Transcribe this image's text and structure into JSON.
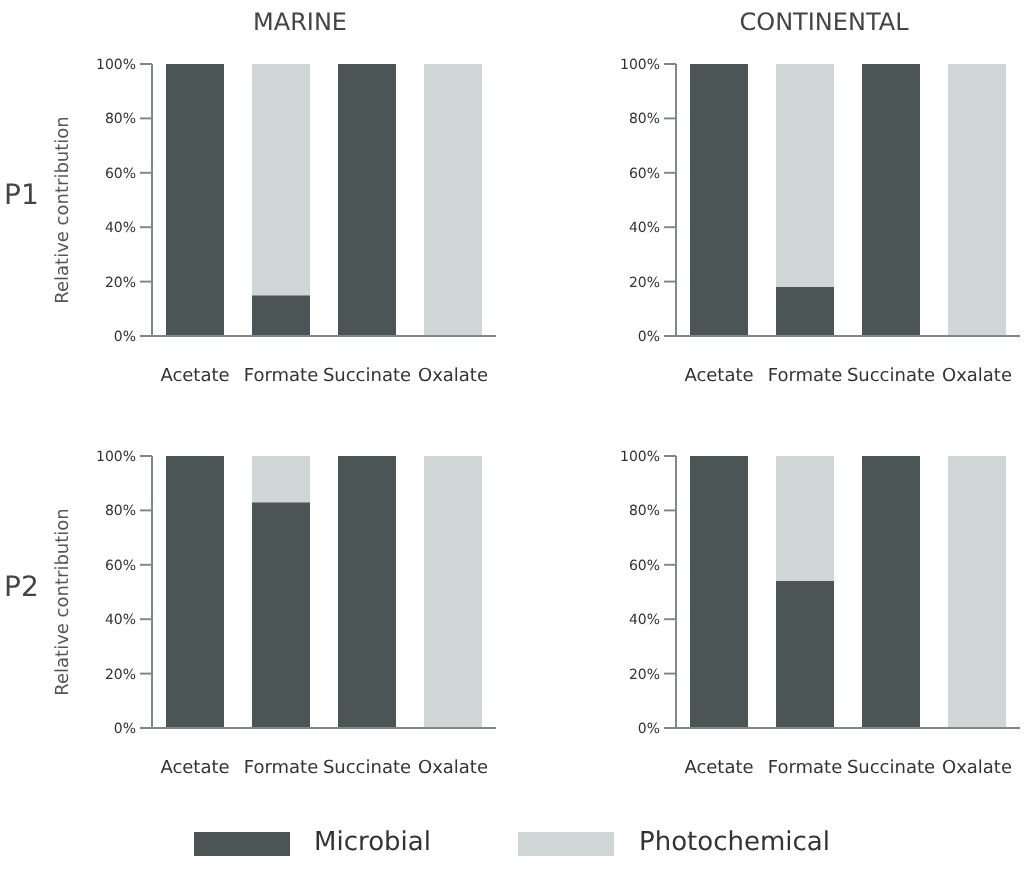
{
  "chart_data": [
    {
      "type": "bar",
      "title": "MARINE",
      "ylabel": "Relative contribution",
      "annotations": [
        "P1"
      ],
      "stacked": true,
      "categories": [
        "Acetate",
        "Formate",
        "Succinate",
        "Oxalate"
      ],
      "series": [
        {
          "color": "#4b5556",
          "values": [
            100,
            15,
            100,
            0
          ]
        },
        {
          "color": "#d0d5d6",
          "values": [
            0,
            85,
            0,
            100
          ]
        }
      ],
      "ylim": [
        0,
        100
      ],
      "yticks": [
        {
          "value": 0,
          "label": "0%"
        },
        {
          "value": 20,
          "label": "20%"
        },
        {
          "value": 40,
          "label": "40%"
        },
        {
          "value": 60,
          "label": "60%"
        },
        {
          "value": 80,
          "label": "80%"
        },
        {
          "value": 100,
          "label": "100%"
        }
      ]
    },
    {
      "type": "bar",
      "title": "CONTINENTAL",
      "stacked": true,
      "categories": [
        "Acetate",
        "Formate",
        "Succinate",
        "Oxalate"
      ],
      "series": [
        {
          "color": "#4b5556",
          "values": [
            100,
            18,
            100,
            0
          ]
        },
        {
          "color": "#d0d5d6",
          "values": [
            0,
            82,
            0,
            100
          ]
        }
      ],
      "ylim": [
        0,
        100
      ],
      "yticks": [
        {
          "value": 0,
          "label": "0%"
        },
        {
          "value": 20,
          "label": "20%"
        },
        {
          "value": 40,
          "label": "40%"
        },
        {
          "value": 60,
          "label": "60%"
        },
        {
          "value": 80,
          "label": "80%"
        },
        {
          "value": 100,
          "label": "100%"
        }
      ]
    },
    {
      "type": "bar",
      "ylabel": "Relative contribution",
      "annotations": [
        "P2"
      ],
      "stacked": true,
      "categories": [
        "Acetate",
        "Formate",
        "Succinate",
        "Oxalate"
      ],
      "series": [
        {
          "color": "#4b5556",
          "values": [
            100,
            83,
            100,
            0
          ]
        },
        {
          "color": "#d0d5d6",
          "values": [
            0,
            17,
            0,
            100
          ]
        }
      ],
      "ylim": [
        0,
        100
      ],
      "yticks": [
        {
          "value": 0,
          "label": "0%"
        },
        {
          "value": 20,
          "label": "20%"
        },
        {
          "value": 40,
          "label": "40%"
        },
        {
          "value": 60,
          "label": "60%"
        },
        {
          "value": 80,
          "label": "80%"
        },
        {
          "value": 100,
          "label": "100%"
        }
      ]
    },
    {
      "type": "bar",
      "stacked": true,
      "legend": "bottom",
      "categories": [
        "Acetate",
        "Formate",
        "Succinate",
        "Oxalate"
      ],
      "series": [
        {
          "name": "Microbial",
          "color": "#4b5556",
          "values": [
            100,
            54,
            100,
            0
          ]
        },
        {
          "name": "Photochemical",
          "color": "#d0d5d6",
          "values": [
            0,
            46,
            0,
            100
          ]
        }
      ],
      "ylim": [
        0,
        100
      ],
      "yticks": [
        {
          "value": 0,
          "label": "0%"
        },
        {
          "value": 20,
          "label": "20%"
        },
        {
          "value": 40,
          "label": "40%"
        },
        {
          "value": 60,
          "label": "60%"
        },
        {
          "value": 80,
          "label": "80%"
        },
        {
          "value": 100,
          "label": "100%"
        }
      ]
    }
  ]
}
